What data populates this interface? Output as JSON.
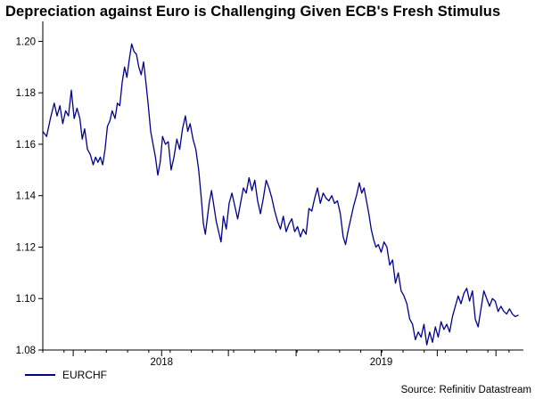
{
  "colors": {
    "line": "#00008b",
    "axis": "#000000",
    "background": "#ffffff"
  },
  "chart_data": {
    "type": "line",
    "title": "Depreciation against Euro is Challenging Given ECB's Fresh Stimulus",
    "xlabel": "",
    "ylabel": "",
    "ylim": [
      1.08,
      1.205
    ],
    "xlim": [
      0,
      1
    ],
    "x_period": "mid-2017 to late 2019 (daily)",
    "y_ticks": [
      1.08,
      1.1,
      1.12,
      1.14,
      1.16,
      1.18,
      1.2
    ],
    "y_tick_labels": [
      "1.08",
      "1.10",
      "1.12",
      "1.14",
      "1.16",
      "1.18",
      "1.20"
    ],
    "x_year_ticks": [
      0.064,
      0.25,
      0.3905,
      0.533,
      0.712,
      0.83,
      0.9535
    ],
    "x_month_ticks": [
      0.0,
      0.0446,
      0.0892,
      0.1338,
      0.1784,
      0.223,
      0.268,
      0.3125,
      0.357,
      0.4015,
      0.446,
      0.4905,
      0.535,
      0.58,
      0.6245,
      0.669,
      0.7135,
      0.758,
      0.8025,
      0.847,
      0.892,
      0.9365,
      0.981
    ],
    "x_labels": [
      {
        "label": "2018",
        "x": 0.25
      },
      {
        "label": "2019",
        "x": 0.712
      }
    ],
    "series": [
      {
        "name": "EURCHF",
        "color": "#00008b",
        "points": [
          [
            0.0,
            1.165
          ],
          [
            0.008,
            1.163
          ],
          [
            0.016,
            1.17
          ],
          [
            0.024,
            1.176
          ],
          [
            0.03,
            1.171
          ],
          [
            0.036,
            1.175
          ],
          [
            0.042,
            1.168
          ],
          [
            0.048,
            1.173
          ],
          [
            0.054,
            1.171
          ],
          [
            0.06,
            1.181
          ],
          [
            0.066,
            1.17
          ],
          [
            0.072,
            1.174
          ],
          [
            0.078,
            1.17
          ],
          [
            0.083,
            1.162
          ],
          [
            0.088,
            1.166
          ],
          [
            0.094,
            1.158
          ],
          [
            0.1,
            1.156
          ],
          [
            0.106,
            1.152
          ],
          [
            0.111,
            1.155
          ],
          [
            0.116,
            1.153
          ],
          [
            0.121,
            1.155
          ],
          [
            0.126,
            1.152
          ],
          [
            0.131,
            1.158
          ],
          [
            0.136,
            1.167
          ],
          [
            0.141,
            1.169
          ],
          [
            0.146,
            1.173
          ],
          [
            0.152,
            1.17
          ],
          [
            0.157,
            1.176
          ],
          [
            0.162,
            1.175
          ],
          [
            0.167,
            1.184
          ],
          [
            0.172,
            1.19
          ],
          [
            0.177,
            1.186
          ],
          [
            0.182,
            1.193
          ],
          [
            0.187,
            1.199
          ],
          [
            0.192,
            1.196
          ],
          [
            0.197,
            1.195
          ],
          [
            0.202,
            1.19
          ],
          [
            0.207,
            1.187
          ],
          [
            0.212,
            1.192
          ],
          [
            0.217,
            1.184
          ],
          [
            0.222,
            1.175
          ],
          [
            0.227,
            1.165
          ],
          [
            0.232,
            1.16
          ],
          [
            0.237,
            1.155
          ],
          [
            0.242,
            1.148
          ],
          [
            0.247,
            1.153
          ],
          [
            0.252,
            1.163
          ],
          [
            0.258,
            1.16
          ],
          [
            0.264,
            1.161
          ],
          [
            0.27,
            1.15
          ],
          [
            0.276,
            1.155
          ],
          [
            0.282,
            1.162
          ],
          [
            0.288,
            1.158
          ],
          [
            0.294,
            1.166
          ],
          [
            0.3,
            1.171
          ],
          [
            0.305,
            1.165
          ],
          [
            0.31,
            1.168
          ],
          [
            0.316,
            1.162
          ],
          [
            0.322,
            1.158
          ],
          [
            0.328,
            1.15
          ],
          [
            0.333,
            1.14
          ],
          [
            0.338,
            1.129
          ],
          [
            0.342,
            1.125
          ],
          [
            0.346,
            1.131
          ],
          [
            0.35,
            1.137
          ],
          [
            0.355,
            1.142
          ],
          [
            0.36,
            1.136
          ],
          [
            0.365,
            1.13
          ],
          [
            0.37,
            1.126
          ],
          [
            0.375,
            1.122
          ],
          [
            0.38,
            1.132
          ],
          [
            0.386,
            1.127
          ],
          [
            0.392,
            1.137
          ],
          [
            0.398,
            1.141
          ],
          [
            0.404,
            1.136
          ],
          [
            0.41,
            1.131
          ],
          [
            0.416,
            1.137
          ],
          [
            0.422,
            1.143
          ],
          [
            0.428,
            1.141
          ],
          [
            0.434,
            1.147
          ],
          [
            0.44,
            1.142
          ],
          [
            0.446,
            1.146
          ],
          [
            0.452,
            1.138
          ],
          [
            0.458,
            1.133
          ],
          [
            0.464,
            1.139
          ],
          [
            0.47,
            1.146
          ],
          [
            0.476,
            1.143
          ],
          [
            0.482,
            1.139
          ],
          [
            0.488,
            1.134
          ],
          [
            0.494,
            1.13
          ],
          [
            0.5,
            1.127
          ],
          [
            0.506,
            1.132
          ],
          [
            0.512,
            1.126
          ],
          [
            0.518,
            1.129
          ],
          [
            0.524,
            1.131
          ],
          [
            0.53,
            1.126
          ],
          [
            0.536,
            1.128
          ],
          [
            0.542,
            1.124
          ],
          [
            0.548,
            1.127
          ],
          [
            0.554,
            1.125
          ],
          [
            0.56,
            1.135
          ],
          [
            0.566,
            1.134
          ],
          [
            0.572,
            1.139
          ],
          [
            0.578,
            1.143
          ],
          [
            0.584,
            1.137
          ],
          [
            0.59,
            1.141
          ],
          [
            0.596,
            1.139
          ],
          [
            0.602,
            1.138
          ],
          [
            0.608,
            1.14
          ],
          [
            0.614,
            1.137
          ],
          [
            0.62,
            1.138
          ],
          [
            0.626,
            1.133
          ],
          [
            0.632,
            1.124
          ],
          [
            0.637,
            1.121
          ],
          [
            0.642,
            1.126
          ],
          [
            0.648,
            1.131
          ],
          [
            0.654,
            1.136
          ],
          [
            0.66,
            1.14
          ],
          [
            0.666,
            1.145
          ],
          [
            0.671,
            1.141
          ],
          [
            0.676,
            1.143
          ],
          [
            0.681,
            1.138
          ],
          [
            0.686,
            1.133
          ],
          [
            0.691,
            1.127
          ],
          [
            0.696,
            1.123
          ],
          [
            0.701,
            1.12
          ],
          [
            0.706,
            1.121
          ],
          [
            0.712,
            1.118
          ],
          [
            0.718,
            1.122
          ],
          [
            0.724,
            1.12
          ],
          [
            0.73,
            1.113
          ],
          [
            0.736,
            1.115
          ],
          [
            0.742,
            1.106
          ],
          [
            0.748,
            1.11
          ],
          [
            0.754,
            1.103
          ],
          [
            0.76,
            1.101
          ],
          [
            0.766,
            1.098
          ],
          [
            0.772,
            1.092
          ],
          [
            0.778,
            1.09
          ],
          [
            0.784,
            1.084
          ],
          [
            0.79,
            1.087
          ],
          [
            0.796,
            1.085
          ],
          [
            0.802,
            1.09
          ],
          [
            0.808,
            1.082
          ],
          [
            0.814,
            1.087
          ],
          [
            0.82,
            1.083
          ],
          [
            0.826,
            1.089
          ],
          [
            0.832,
            1.085
          ],
          [
            0.838,
            1.091
          ],
          [
            0.844,
            1.088
          ],
          [
            0.85,
            1.09
          ],
          [
            0.856,
            1.087
          ],
          [
            0.862,
            1.093
          ],
          [
            0.868,
            1.097
          ],
          [
            0.874,
            1.101
          ],
          [
            0.88,
            1.098
          ],
          [
            0.886,
            1.102
          ],
          [
            0.892,
            1.104
          ],
          [
            0.898,
            1.099
          ],
          [
            0.904,
            1.103
          ],
          [
            0.91,
            1.092
          ],
          [
            0.916,
            1.089
          ],
          [
            0.922,
            1.096
          ],
          [
            0.928,
            1.103
          ],
          [
            0.934,
            1.1
          ],
          [
            0.94,
            1.097
          ],
          [
            0.946,
            1.1
          ],
          [
            0.952,
            1.099
          ],
          [
            0.958,
            1.095
          ],
          [
            0.964,
            1.097
          ],
          [
            0.97,
            1.095
          ],
          [
            0.976,
            1.094
          ],
          [
            0.982,
            1.096
          ],
          [
            0.988,
            1.094
          ],
          [
            0.994,
            1.093
          ],
          [
            1.0,
            1.0935
          ]
        ]
      }
    ]
  },
  "legend": {
    "label": "EURCHF"
  },
  "source": "Source: Refinitiv Datastream"
}
